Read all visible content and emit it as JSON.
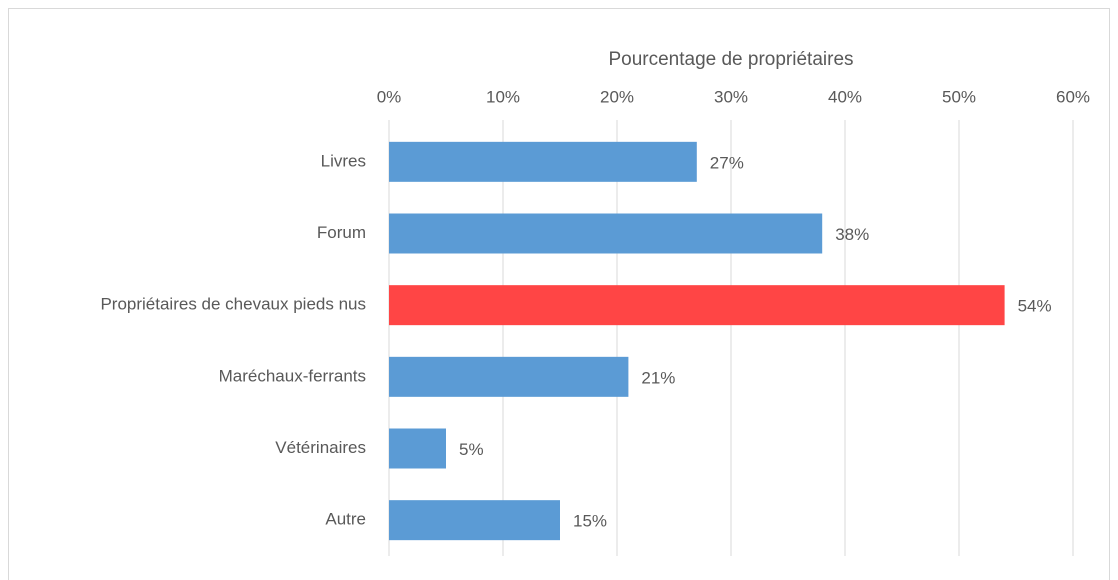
{
  "chart_data": {
    "type": "bar",
    "orientation": "horizontal",
    "x_label": "Pourcentage de propriétaires",
    "categories": [
      "Livres",
      "Forum",
      "Propriétaires de chevaux pieds nus",
      "Maréchaux-ferrants",
      "Vétérinaires",
      "Autre"
    ],
    "values": [
      27,
      38,
      54,
      21,
      5,
      15
    ],
    "value_labels": [
      "27%",
      "38%",
      "54%",
      "21%",
      "5%",
      "15%"
    ],
    "colors": [
      "#5b9bd5",
      "#5b9bd5",
      "#ff4545",
      "#5b9bd5",
      "#5b9bd5",
      "#5b9bd5"
    ],
    "xlim": [
      0,
      60
    ],
    "xticks": [
      {
        "value": 0,
        "label": "0%"
      },
      {
        "value": 10,
        "label": "10%"
      },
      {
        "value": 20,
        "label": "20%"
      },
      {
        "value": 30,
        "label": "30%"
      },
      {
        "value": 40,
        "label": "40%"
      },
      {
        "value": 50,
        "label": "50%"
      },
      {
        "value": 60,
        "label": "60%"
      }
    ],
    "grid": true
  }
}
